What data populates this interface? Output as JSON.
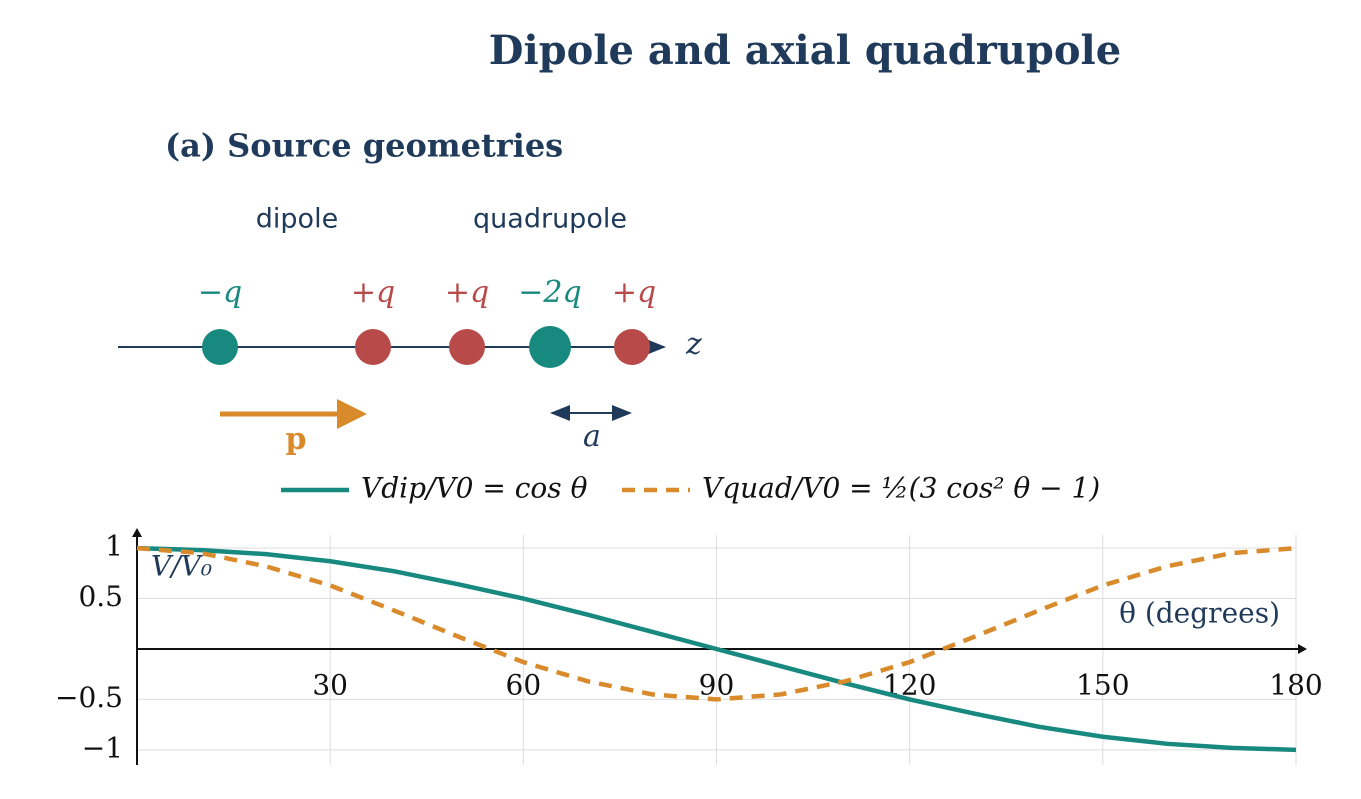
{
  "title": "Dipole and axial quadrupole",
  "diagram": {
    "title": "(a) Source geometries",
    "group_labels": [
      "dipole",
      "quadrupole"
    ],
    "charge_labels": [
      "−q",
      "+q",
      "+q",
      "−2q",
      "+q"
    ],
    "axis_label": "z",
    "moment_label": "p",
    "spacing_label": "a"
  },
  "chart_data": {
    "type": "line",
    "x": [
      0,
      10,
      20,
      30,
      40,
      50,
      60,
      70,
      80,
      90,
      100,
      110,
      120,
      130,
      140,
      150,
      160,
      170,
      180
    ],
    "series": [
      {
        "name": "Vdip/V0 = cos θ",
        "color": "#17897f",
        "dash": false,
        "values": [
          1,
          0.98,
          0.94,
          0.87,
          0.77,
          0.64,
          0.5,
          0.34,
          0.17,
          0,
          -0.17,
          -0.34,
          -0.5,
          -0.64,
          -0.77,
          -0.87,
          -0.94,
          -0.98,
          -1
        ]
      },
      {
        "name": "Vquad/V0 = ½(3 cos² θ − 1)",
        "color": "#d98a2b",
        "dash": true,
        "values": [
          1,
          0.95,
          0.82,
          0.63,
          0.38,
          0.12,
          -0.13,
          -0.32,
          -0.45,
          -0.5,
          -0.45,
          -0.32,
          -0.13,
          0.12,
          0.38,
          0.63,
          0.82,
          0.95,
          1
        ]
      }
    ],
    "x_label": "θ (degrees)",
    "y_label": "V/V₀",
    "xlim": [
      0,
      180
    ],
    "ylim": [
      -1.15,
      1.13
    ],
    "xticks": [
      30,
      60,
      90,
      120,
      150,
      180
    ],
    "yticks": [
      1,
      0.5,
      {
        "value": -0.5,
        "label": "−0.5"
      },
      {
        "value": -1,
        "label": "−1"
      }
    ],
    "grid": true
  }
}
